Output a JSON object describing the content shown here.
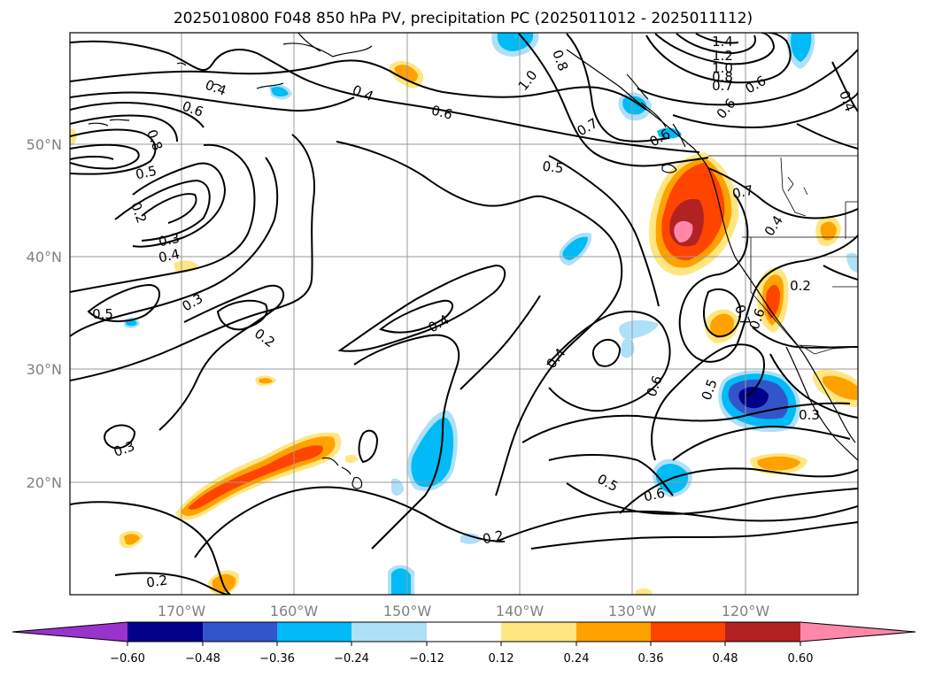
{
  "title": "2025010800 F048 850 hPa PV, precipitation PC (2025011012 - 2025011112)",
  "axes": {
    "lat_labels": [
      "50°N",
      "40°N",
      "30°N",
      "20°N"
    ],
    "lon_labels": [
      "170°W",
      "160°W",
      "150°W",
      "140°W",
      "130°W",
      "120°W"
    ]
  },
  "colorbar": {
    "tick_labels": [
      "−0.60",
      "−0.48",
      "−0.36",
      "−0.24",
      "−0.12",
      "0.12",
      "0.24",
      "0.36",
      "0.48",
      "0.60"
    ],
    "colors": [
      "#9933cc",
      "#000088",
      "#3355cc",
      "#00bbf5",
      "#aee0f8",
      "#ffffff",
      "#ffe680",
      "#ffa200",
      "#ff4400",
      "#b22222",
      "#ff88aa"
    ]
  },
  "contour_labels": [
    "0.4",
    "0.4",
    "0.6",
    "0.7",
    "0.8",
    "0.5",
    "0.2",
    "0.3",
    "0.4",
    "0.3",
    "0.5",
    "0.2",
    "0.4",
    "0.4",
    "0.5",
    "0.6",
    "1.0",
    "0.8",
    "0.7",
    "0.6",
    "0.5",
    "0.7",
    "0.4",
    "0.2",
    "0.6",
    "0.3",
    "0.5",
    "0.6",
    "0.2",
    "0.2",
    "0.3",
    "1.4",
    "1.2",
    "1.0",
    "0.8",
    "0.7",
    "0.6",
    "0.6",
    "0.4",
    "0.6"
  ]
}
